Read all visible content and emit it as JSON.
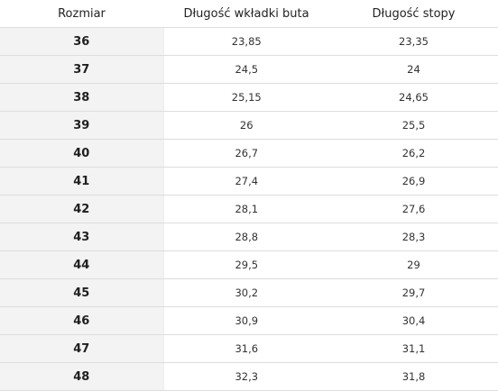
{
  "table": {
    "headers": {
      "size": "Rozmiar",
      "insole_length": "Długość wkładki buta",
      "foot_length": "Długość stopy"
    },
    "rows": [
      {
        "size": "36",
        "insole": "23,85",
        "foot": "23,35"
      },
      {
        "size": "37",
        "insole": "24,5",
        "foot": "24"
      },
      {
        "size": "38",
        "insole": "25,15",
        "foot": "24,65"
      },
      {
        "size": "39",
        "insole": "26",
        "foot": "25,5"
      },
      {
        "size": "40",
        "insole": "26,7",
        "foot": "26,2"
      },
      {
        "size": "41",
        "insole": "27,4",
        "foot": "26,9"
      },
      {
        "size": "42",
        "insole": "28,1",
        "foot": "27,6"
      },
      {
        "size": "43",
        "insole": "28,8",
        "foot": "28,3"
      },
      {
        "size": "44",
        "insole": "29,5",
        "foot": "29"
      },
      {
        "size": "45",
        "insole": "30,2",
        "foot": "29,7"
      },
      {
        "size": "46",
        "insole": "30,9",
        "foot": "30,4"
      },
      {
        "size": "47",
        "insole": "31,6",
        "foot": "31,1"
      },
      {
        "size": "48",
        "insole": "32,3",
        "foot": "31,8"
      }
    ]
  }
}
